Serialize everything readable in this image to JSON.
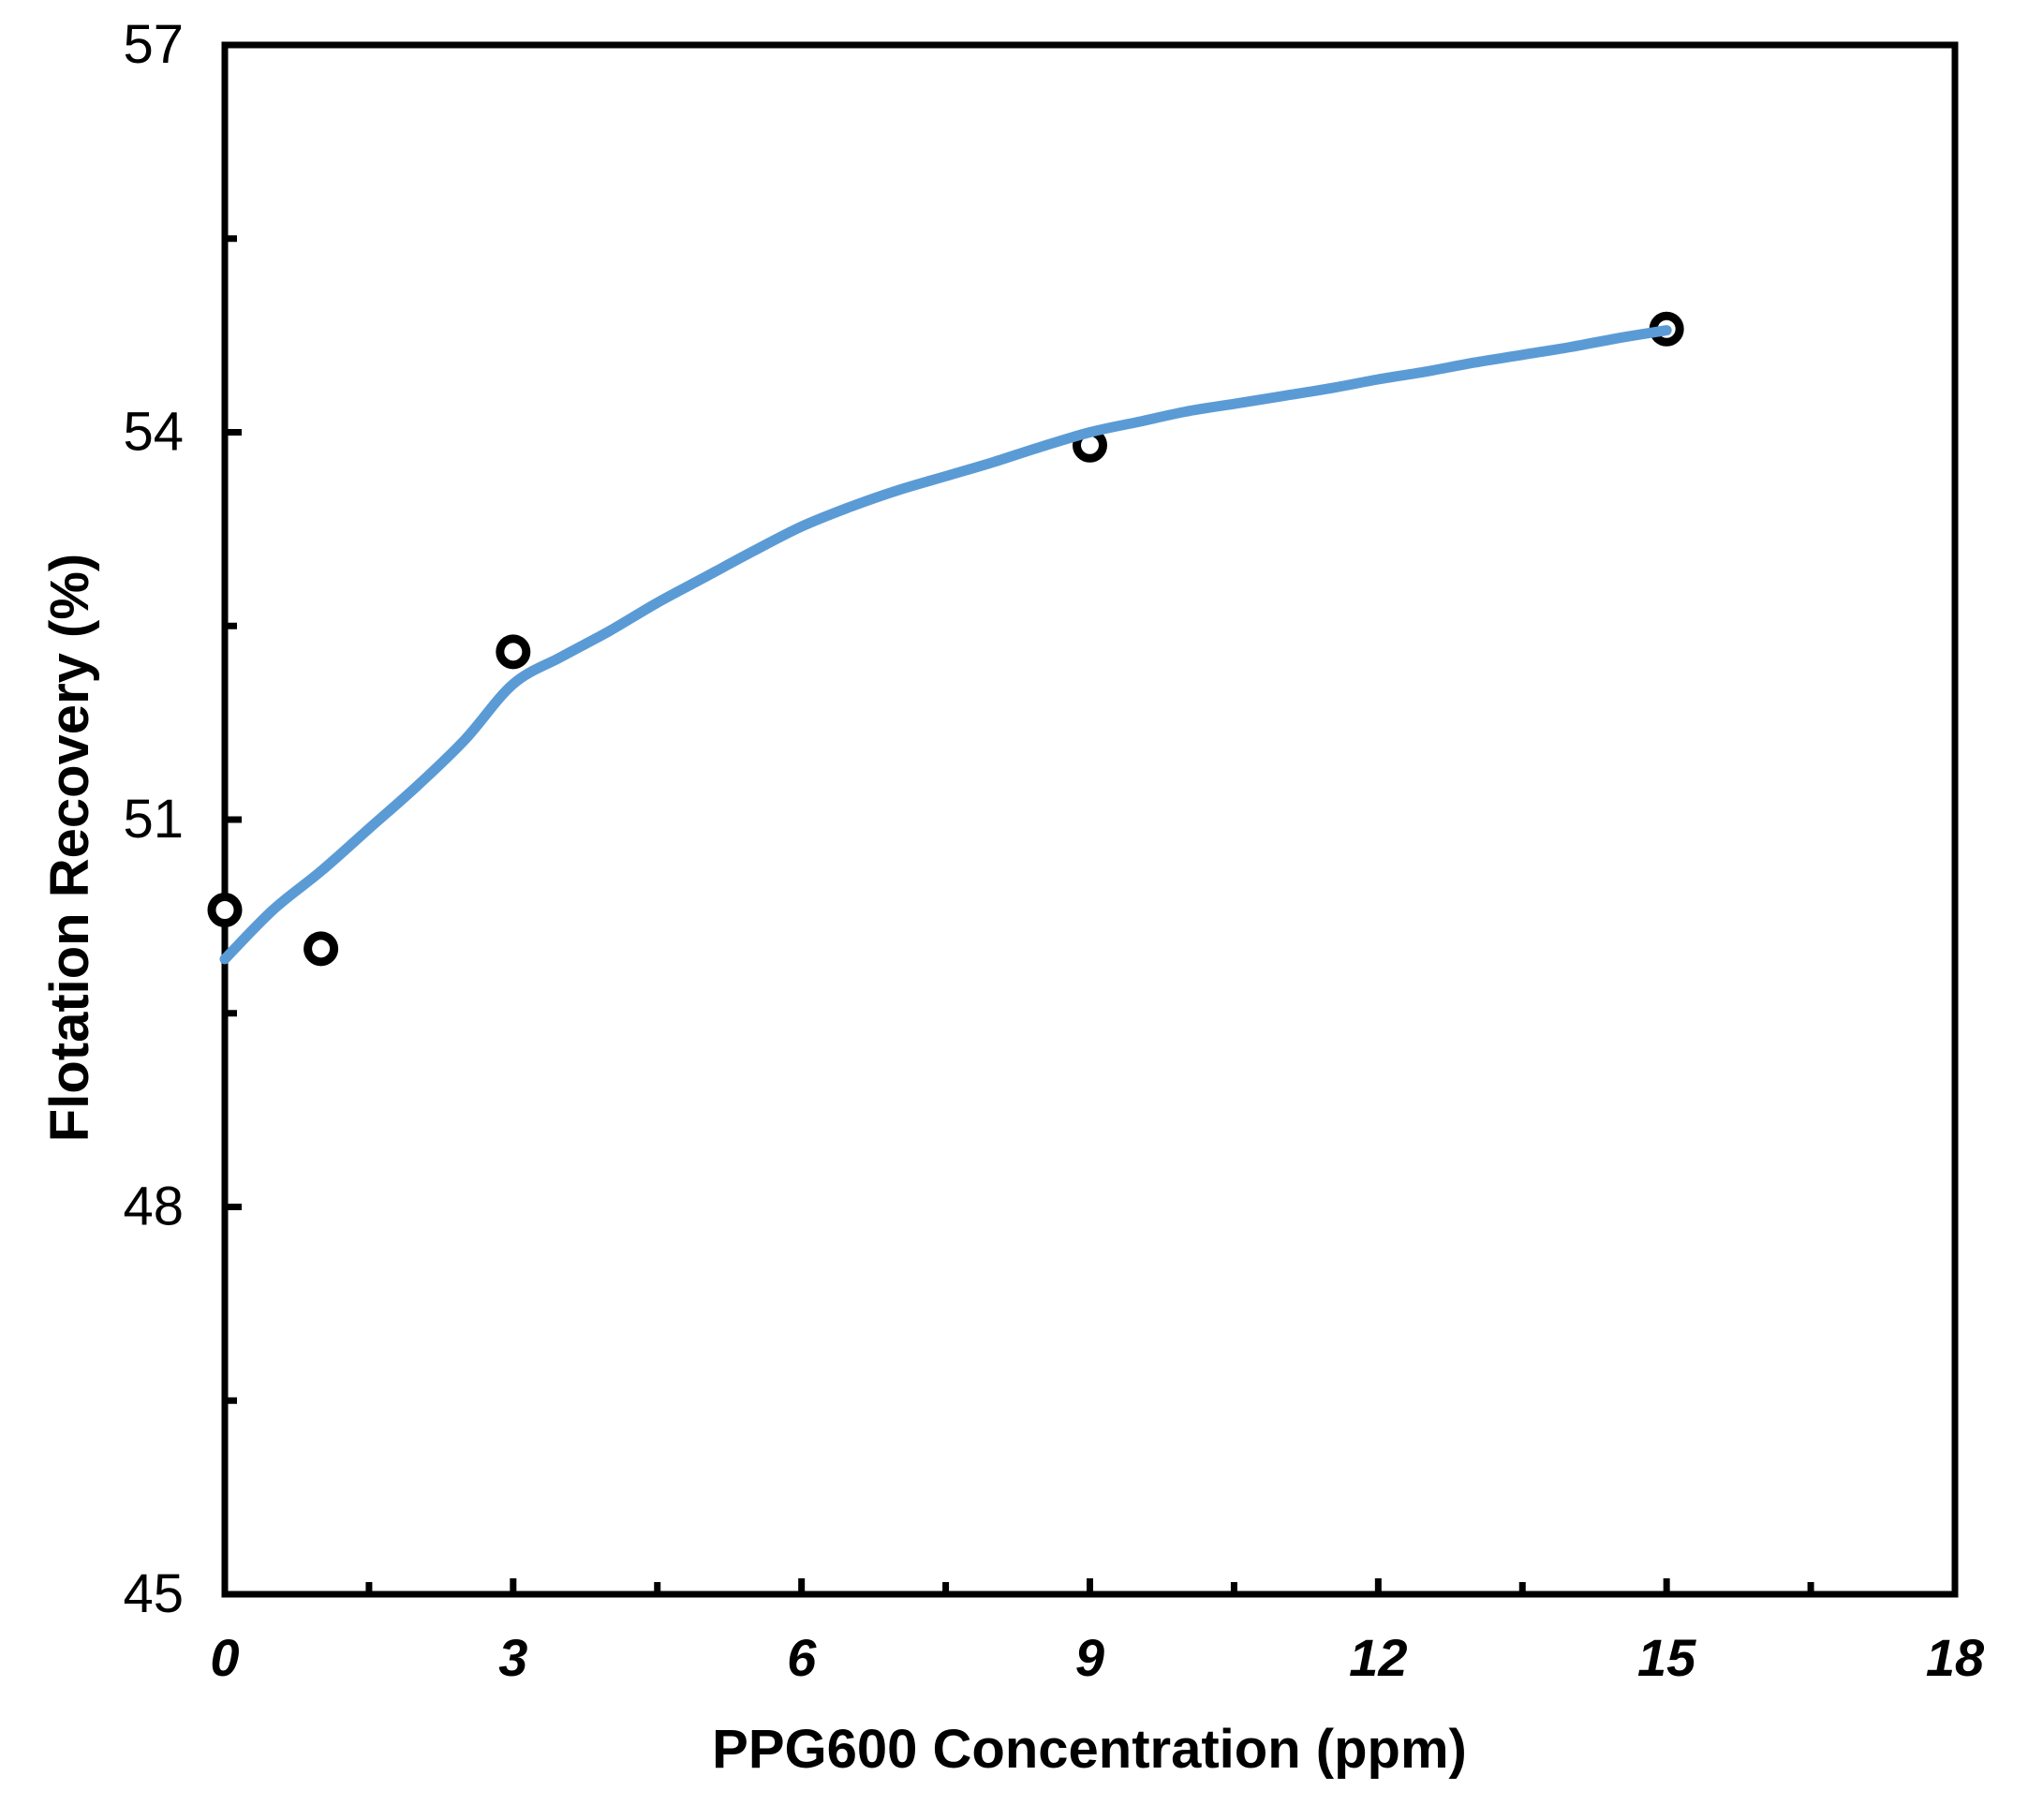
{
  "chart_data": {
    "type": "scatter",
    "title": "",
    "xlabel": "PPG600 Concentration (ppm)",
    "ylabel": "Flotation Recovery (%)",
    "xlim": [
      0,
      18
    ],
    "ylim": [
      45,
      57
    ],
    "x_major_ticks": [
      0,
      3,
      6,
      9,
      12,
      15,
      18
    ],
    "x_minor_ticks": [
      1.5,
      4.5,
      7.5,
      10.5,
      13.5,
      16.5
    ],
    "y_major_ticks": [
      45,
      48,
      51,
      54,
      57
    ],
    "y_minor_ticks": [
      46.5,
      49.5,
      52.5,
      55.5
    ],
    "grid": false,
    "legend": "none",
    "series": [
      {
        "name": "experimental-points",
        "kind": "scatter",
        "marker": "open-circle",
        "marker_color": "#000000",
        "marker_fill": "#FFFFFF",
        "points": [
          [
            0,
            50.3
          ],
          [
            1,
            50.0
          ],
          [
            3,
            52.3
          ],
          [
            9,
            53.9
          ],
          [
            15,
            54.8
          ]
        ]
      },
      {
        "name": "fitted-curve",
        "kind": "line",
        "line_color": "#5B9BD5",
        "points": [
          [
            0,
            49.92
          ],
          [
            0.5,
            50.3
          ],
          [
            1,
            50.6
          ],
          [
            1.5,
            50.93
          ],
          [
            2,
            51.26
          ],
          [
            2.5,
            51.62
          ],
          [
            3,
            52.05
          ],
          [
            3.5,
            52.26
          ],
          [
            4,
            52.46
          ],
          [
            4.5,
            52.68
          ],
          [
            5,
            52.88
          ],
          [
            5.5,
            53.08
          ],
          [
            6,
            53.27
          ],
          [
            6.5,
            53.42
          ],
          [
            7,
            53.55
          ],
          [
            7.5,
            53.66
          ],
          [
            8,
            53.77
          ],
          [
            8.5,
            53.89
          ],
          [
            9,
            54.0
          ],
          [
            9.5,
            54.08
          ],
          [
            10,
            54.16
          ],
          [
            10.5,
            54.22
          ],
          [
            11,
            54.28
          ],
          [
            11.5,
            54.34
          ],
          [
            12,
            54.41
          ],
          [
            12.5,
            54.47
          ],
          [
            13,
            54.54
          ],
          [
            13.5,
            54.6
          ],
          [
            14,
            54.66
          ],
          [
            14.5,
            54.73
          ],
          [
            15,
            54.79
          ]
        ]
      }
    ],
    "colors": {
      "curve": "#5B9BD5",
      "marker_stroke": "#000000",
      "marker_fill": "#FFFFFF",
      "axis": "#000000",
      "background": "#FFFFFF"
    }
  }
}
